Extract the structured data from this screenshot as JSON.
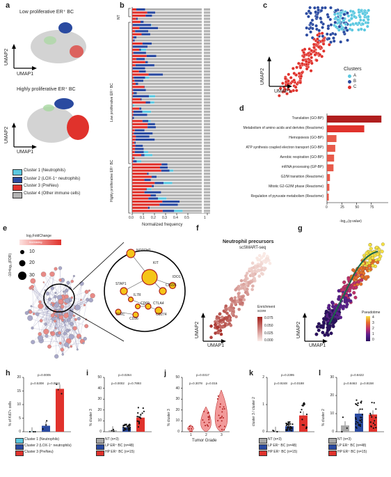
{
  "panels": {
    "a": {
      "letter": "a",
      "top_title": "Low proliferative ER⁺ BC",
      "bottom_title": "Highly proliferative ER⁺ BC",
      "xlabel": "UMAP1",
      "ylabel": "UMAP2",
      "legend": [
        "Cluster 1 (Neutrophils)",
        "Cluster 2 (LOX-1⁺ neutrophils)",
        "Cluster 3 (PreNeu)",
        "Cluster 4 (Other immune cells)"
      ]
    },
    "b": {
      "letter": "b",
      "xlabel": "Normalized frequency",
      "group_nt": "NT",
      "group_lp": "Low proliferative ER⁺ BC",
      "group_hp": "Highly proliferative ER⁺ BC",
      "ticks": [
        "0.0",
        "0.1",
        "0.2",
        "0.3",
        "0.4",
        "0.5",
        "1"
      ]
    },
    "c": {
      "letter": "c",
      "legend_title": "Clusters",
      "legend": [
        "A",
        "B",
        "C"
      ],
      "xlabel": "UMAP1",
      "ylabel": "UMAP2"
    },
    "d": {
      "letter": "d",
      "xlabel": "-log₁₀(q-value)",
      "ticks": [
        "0",
        "25",
        "50",
        "75"
      ],
      "terms": [
        "Translation (GO-BP)",
        "Metabolism of amino acids and derivtes (Reactome)",
        "Hemopoiesis (GO-BP)",
        "ATP synthesis coupled electron transport (GO-BP)",
        "Aerobic respiration (GO-BP)",
        "mRNA processing (GP-BP)",
        "G2/M transition (Reactome)",
        "Mitotic G2-G2/M phase (Reactome)",
        "Regulation of pyruvate metabolism (Reactome)"
      ]
    },
    "e": {
      "letter": "e",
      "fc_label": "log₂FoldChange",
      "fc_note": "Increasing",
      "size_label": "-10×log₁₀(FDR)",
      "sizes": [
        "10",
        "20",
        "30"
      ],
      "genes": [
        "NOTCH2",
        "KIT",
        "STAP1",
        "CD226",
        "IDO1",
        "IL7R",
        "CD69",
        "CTLA4",
        "TFRC",
        "CD36",
        "CD274"
      ]
    },
    "f": {
      "letter": "f",
      "title": "Neutrophil precursors",
      "subtitle": "scSMART-seq",
      "legend_title": "Enrichment score",
      "ticks": [
        "0.075",
        "0.050",
        "0.025",
        "0.000"
      ],
      "xlabel": "UMAP1",
      "ylabel": "UMAP2"
    },
    "g": {
      "letter": "g",
      "legend_title": "Pseudotime",
      "ticks": [
        "4",
        "3",
        "2",
        "1",
        "0"
      ],
      "xlabel": "UMAP1",
      "ylabel": "UMAP2"
    },
    "h": {
      "letter": "h",
      "ylabel": "% of Ki67+ cells",
      "yticks": [
        "0",
        "5",
        "10",
        "15",
        "20"
      ],
      "pvals": [
        "p=0.0005",
        "p=0.5308",
        "p=0.0011"
      ],
      "legend": [
        "Cluster 1 (Neutrophils)",
        "Cluster 2 (LOX-1⁺ neutrophils)",
        "Cluster 3 (PreNeu)"
      ]
    },
    "i": {
      "letter": "i",
      "ylabel": "% cluster 3",
      "yticks": [
        "0",
        "10",
        "20",
        "30",
        "40",
        "50"
      ],
      "pvals": [
        "p=0.0264",
        "p=0.0002",
        "p=0.7893"
      ],
      "legend": [
        "NT (n=3)",
        "LP ER⁺ BC (n=48)",
        "HP ER⁺ BC (n=15)"
      ]
    },
    "j": {
      "letter": "j",
      "ylabel": "% cluster 3",
      "xlabel": "Tumor Grade",
      "yticks": [
        "0",
        "10",
        "20",
        "30",
        "40",
        "50"
      ],
      "xticks": [
        "1",
        "2",
        "3"
      ],
      "pvals": [
        "p=0.0317",
        "p=0.3078",
        "p=0.016"
      ]
    },
    "k": {
      "letter": "k",
      "ylabel": "cluster 3 / cluster 2",
      "yticks": [
        "0",
        "1",
        "2"
      ],
      "pvals": [
        "p=0.2395",
        "p=0.9248",
        "p=0.0188"
      ],
      "legend": [
        "NT (n=3)",
        "LP ER⁺ BC (n=48)",
        "HP ER⁺ BC (n=15)"
      ]
    },
    "l": {
      "letter": "l",
      "ylabel": "% cluster 2",
      "yticks": [
        "0",
        "10",
        "20",
        "30"
      ],
      "pvals": [
        "p=0.8422",
        "p=0.8463",
        "p=0.8158"
      ],
      "legend": [
        "NT (n=3)",
        "LP ER⁺ BC (n=48)",
        "HP ER⁺ BC (n=15)"
      ]
    }
  },
  "colors": {
    "cluster1": "#5bc8e0",
    "cluster2": "#2a4aa0",
    "cluster3": "#e0322c",
    "cluster4": "#b4b4b4",
    "nt": "#a8a8a8"
  },
  "chart_data": [
    {
      "type": "bar",
      "panel": "d",
      "categories": [
        "Translation (GO-BP)",
        "Metabolism of amino acids and derivtes (Reactome)",
        "Hemopoiesis (GO-BP)",
        "ATP synthesis coupled electron transport (GO-BP)",
        "Aerobic respiration (GO-BP)",
        "mRNA processing (GP-BP)",
        "G2/M transition (Reactome)",
        "Mitotic G2-G2/M phase (Reactome)",
        "Regulation of pyruvate metabolism (Reactome)"
      ],
      "values": [
        92,
        63,
        16,
        14,
        12,
        11,
        5,
        4,
        3
      ],
      "xlim": [
        0,
        100
      ],
      "xlabel": "-log₁₀(q-value)"
    },
    {
      "type": "bar",
      "panel": "h",
      "categories": [
        "Cluster 1 (Neutrophils)",
        "Cluster 2 (LOX-1⁺ neutrophils)",
        "Cluster 3 (PreNeu)"
      ],
      "values": [
        0.1,
        2.2,
        15.8
      ],
      "ylim": [
        0,
        20
      ],
      "ylabel": "% of Ki67+ cells"
    },
    {
      "type": "bar",
      "panel": "i",
      "categories": [
        "NT (n=3)",
        "LP ER⁺ BC (n=48)",
        "HP ER⁺ BC (n=15)"
      ],
      "values": [
        1.2,
        4,
        13
      ],
      "ylim": [
        0,
        50
      ],
      "ylabel": "% cluster 3"
    },
    {
      "type": "bar",
      "panel": "k",
      "categories": [
        "NT (n=3)",
        "LP ER⁺ BC (n=48)",
        "HP ER⁺ BC (n=15)"
      ],
      "values": [
        0.03,
        0.2,
        0.6
      ],
      "ylim": [
        0,
        2
      ],
      "ylabel": "cluster 3 / cluster 2"
    },
    {
      "type": "bar",
      "panel": "l",
      "categories": [
        "NT (n=3)",
        "LP ER⁺ BC (n=48)",
        "HP ER⁺ BC (n=15)"
      ],
      "values": [
        3.5,
        10,
        9.5
      ],
      "ylim": [
        0,
        30
      ],
      "ylabel": "% cluster 2"
    }
  ]
}
